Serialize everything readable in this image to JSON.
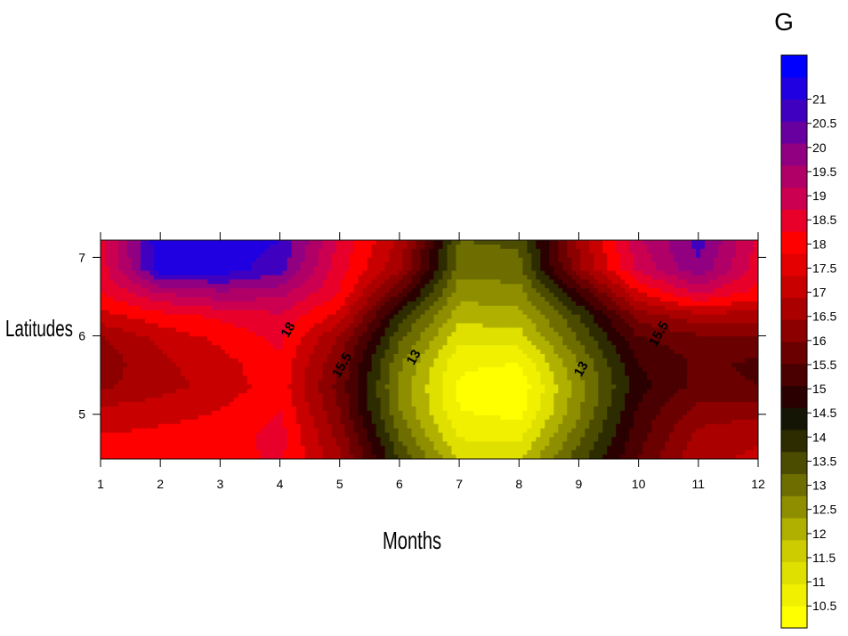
{
  "chart_data": {
    "type": "heatmap",
    "subtype": "filled-contour",
    "title": "",
    "xlabel": "Months",
    "ylabel": "Latitudes",
    "colorbar_title": "G",
    "xlim": [
      1,
      12
    ],
    "ylim": [
      4.43,
      7.22
    ],
    "x_ticks": [
      1,
      2,
      3,
      4,
      5,
      6,
      7,
      8,
      9,
      10,
      11,
      12
    ],
    "y_ticks": [
      5,
      6,
      7
    ],
    "contour_levels": [
      10.5,
      11,
      11.5,
      12,
      12.5,
      13,
      13.5,
      14,
      14.5,
      15,
      15.5,
      16,
      16.5,
      17,
      17.5,
      18,
      18.5,
      19,
      19.5,
      20,
      20.5,
      21,
      21.5
    ],
    "colorbar_labels": [
      "21",
      "20.5",
      "20",
      "19.5",
      "19",
      "18.5",
      "18",
      "17.5",
      "17",
      "16.5",
      "16",
      "15.5",
      "15",
      "14.5",
      "14",
      "13.5",
      "13",
      "12.5",
      "12",
      "11.5",
      "11",
      "10.5"
    ],
    "colorbar_colors": [
      "#ffff00",
      "#f0f000",
      "#e0e000",
      "#cccc00",
      "#b0b000",
      "#8e8e00",
      "#6e6e00",
      "#4c4c00",
      "#2c2c00",
      "#151505",
      "#2a0000",
      "#4a0000",
      "#6a0000",
      "#8c0000",
      "#aa0000",
      "#c80000",
      "#e40000",
      "#ff0000",
      "#e8002a",
      "#cc0050",
      "#b00068",
      "#900080",
      "#6800a0",
      "#4000c0",
      "#2000e0",
      "#0000ff"
    ],
    "contour_labels": [
      {
        "text": "18",
        "x": 4.2,
        "y": 6.05
      },
      {
        "text": "15.5",
        "x": 5.1,
        "y": 5.6
      },
      {
        "text": "13",
        "x": 6.3,
        "y": 5.7
      },
      {
        "text": "13",
        "x": 9.1,
        "y": 5.55
      },
      {
        "text": "15.5",
        "x": 10.4,
        "y": 6.0
      }
    ],
    "grid_months": [
      1,
      2,
      3,
      4,
      5,
      6,
      7,
      8,
      9,
      10,
      11,
      12
    ],
    "grid_latitudes": [
      4.43,
      4.75,
      5.05,
      5.35,
      5.65,
      5.95,
      6.25,
      6.55,
      6.85,
      7.22
    ],
    "grid_values": [
      [
        17.6,
        17.9,
        17.8,
        18.1,
        16.6,
        14.0,
        11.9,
        11.9,
        13.8,
        15.5,
        16.9,
        17.1
      ],
      [
        17.5,
        17.6,
        17.7,
        18.2,
        16.3,
        13.4,
        11.4,
        11.3,
        13.3,
        15.3,
        16.6,
        16.9
      ],
      [
        17.1,
        17.3,
        17.5,
        18.0,
        16.0,
        13.0,
        11.0,
        10.8,
        12.9,
        15.1,
        16.2,
        16.3
      ],
      [
        16.4,
        16.8,
        17.2,
        17.8,
        15.8,
        12.9,
        10.9,
        10.6,
        12.8,
        14.8,
        15.7,
        15.5
      ],
      [
        16.2,
        16.9,
        17.3,
        17.9,
        16.0,
        13.1,
        11.1,
        11.0,
        13.0,
        15.0,
        15.6,
        15.4
      ],
      [
        16.4,
        17.1,
        17.6,
        18.1,
        16.4,
        13.6,
        11.6,
        11.7,
        13.5,
        15.4,
        15.8,
        15.9
      ],
      [
        17.3,
        17.8,
        18.1,
        18.4,
        17.3,
        14.2,
        12.2,
        12.3,
        14.0,
        16.2,
        16.8,
        16.7
      ],
      [
        18.0,
        19.0,
        19.4,
        19.2,
        18.0,
        15.5,
        12.7,
        12.8,
        15.0,
        17.5,
        18.6,
        17.8
      ],
      [
        18.2,
        20.8,
        20.8,
        20.2,
        18.2,
        16.6,
        13.2,
        13.3,
        16.4,
        18.6,
        19.9,
        18.2
      ],
      [
        18.3,
        20.9,
        20.9,
        20.5,
        18.4,
        16.9,
        13.5,
        13.6,
        16.6,
        18.9,
        20.2,
        18.4
      ]
    ]
  }
}
